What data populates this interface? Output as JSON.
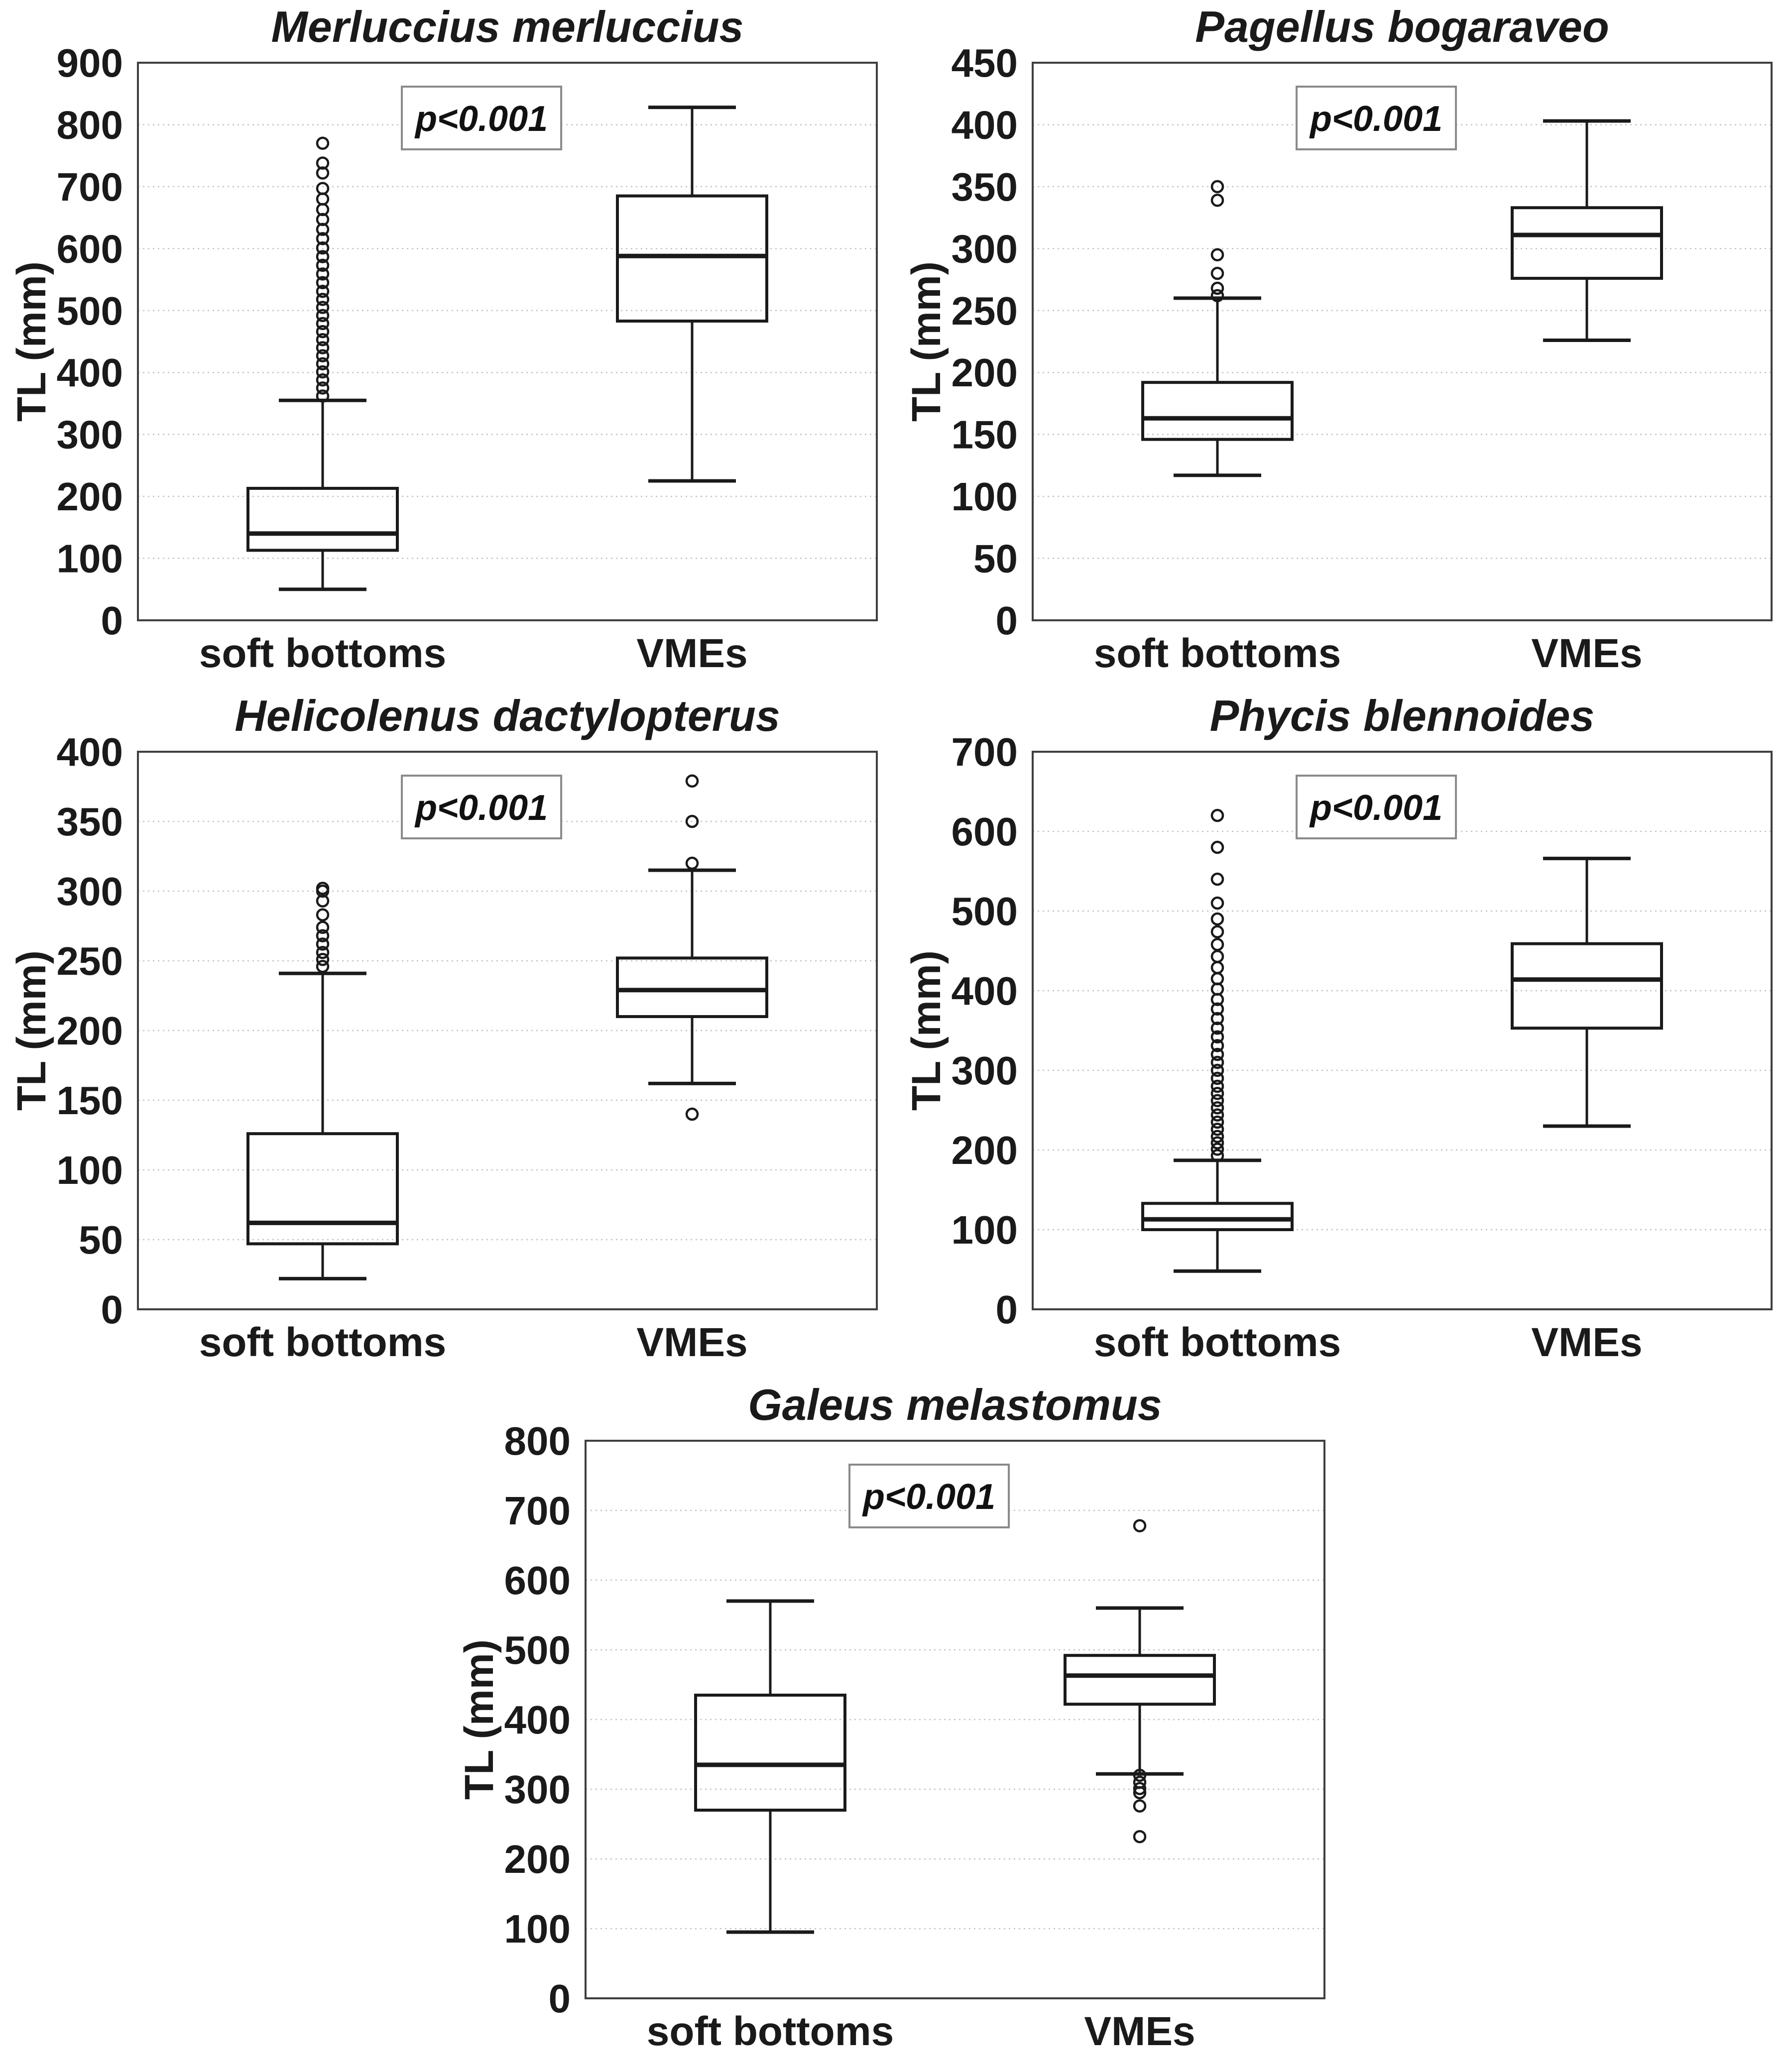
{
  "figure": {
    "ylabel": "TL (mm)",
    "p_label": "p<0.001",
    "categories": [
      "soft bottoms",
      "VMEs"
    ]
  },
  "chart_data": [
    {
      "type": "boxplot",
      "title": "Merluccius merluccius",
      "p_label": "p<0.001",
      "ylabel": "TL (mm)",
      "xlabel": "",
      "ylim": [
        0,
        900
      ],
      "ytick_step": 100,
      "grid": true,
      "categories": [
        "soft bottoms",
        "VMEs"
      ],
      "series": [
        {
          "name": "soft bottoms",
          "whisker_low": 50,
          "q1": 113,
          "median": 140,
          "q3": 213,
          "whisker_high": 355,
          "outliers": [
            362,
            375,
            388,
            401,
            414,
            427,
            440,
            453,
            466,
            479,
            492,
            505,
            518,
            531,
            545,
            559,
            573,
            587,
            601,
            616,
            631,
            647,
            663,
            680,
            697,
            722,
            738,
            770
          ]
        },
        {
          "name": "VMEs",
          "whisker_low": 225,
          "q1": 483,
          "median": 588,
          "q3": 685,
          "whisker_high": 828,
          "outliers": []
        }
      ]
    },
    {
      "type": "boxplot",
      "title": "Pagellus bogaraveo",
      "p_label": "p<0.001",
      "ylabel": "TL (mm)",
      "xlabel": "",
      "ylim": [
        0,
        450
      ],
      "ytick_step": 50,
      "grid": true,
      "categories": [
        "soft bottoms",
        "VMEs"
      ],
      "series": [
        {
          "name": "soft bottoms",
          "whisker_low": 117,
          "q1": 146,
          "median": 163,
          "q3": 192,
          "whisker_high": 260,
          "outliers": [
            262,
            268,
            280,
            295,
            339,
            350
          ]
        },
        {
          "name": "VMEs",
          "whisker_low": 226,
          "q1": 276,
          "median": 311,
          "q3": 333,
          "whisker_high": 403,
          "outliers": []
        }
      ]
    },
    {
      "type": "boxplot",
      "title": "Helicolenus dactylopterus",
      "p_label": "p<0.001",
      "ylabel": "TL (mm)",
      "xlabel": "",
      "ylim": [
        0,
        400
      ],
      "ytick_step": 50,
      "grid": true,
      "categories": [
        "soft bottoms",
        "VMEs"
      ],
      "series": [
        {
          "name": "soft bottoms",
          "whisker_low": 22,
          "q1": 47,
          "median": 62,
          "q3": 126,
          "whisker_high": 241,
          "outliers": [
            246,
            251,
            256,
            262,
            268,
            274,
            283,
            293,
            300,
            302
          ]
        },
        {
          "name": "VMEs",
          "whisker_low": 162,
          "q1": 210,
          "median": 229,
          "q3": 252,
          "whisker_high": 315,
          "outliers": [
            140,
            320,
            350,
            379
          ]
        }
      ]
    },
    {
      "type": "boxplot",
      "title": "Phycis blennoides",
      "p_label": "p<0.001",
      "ylabel": "TL (mm)",
      "xlabel": "",
      "ylim": [
        0,
        700
      ],
      "ytick_step": 100,
      "grid": true,
      "categories": [
        "soft bottoms",
        "VMEs"
      ],
      "series": [
        {
          "name": "soft bottoms",
          "whisker_low": 48,
          "q1": 100,
          "median": 113,
          "q3": 133,
          "whisker_high": 187,
          "outliers": [
            193,
            201,
            209,
            217,
            226,
            235,
            244,
            253,
            262,
            271,
            280,
            290,
            300,
            310,
            320,
            331,
            342,
            353,
            365,
            377,
            389,
            402,
            415,
            429,
            443,
            458,
            474,
            490,
            510,
            540,
            580,
            620
          ]
        },
        {
          "name": "VMEs",
          "whisker_low": 230,
          "q1": 353,
          "median": 414,
          "q3": 459,
          "whisker_high": 566,
          "outliers": []
        }
      ]
    },
    {
      "type": "boxplot",
      "title": "Galeus melastomus",
      "p_label": "p<0.001",
      "ylabel": "TL (mm)",
      "xlabel": "",
      "ylim": [
        0,
        800
      ],
      "ytick_step": 100,
      "grid": true,
      "categories": [
        "soft bottoms",
        "VMEs"
      ],
      "series": [
        {
          "name": "soft bottoms",
          "whisker_low": 95,
          "q1": 270,
          "median": 335,
          "q3": 435,
          "whisker_high": 570,
          "outliers": []
        },
        {
          "name": "VMEs",
          "whisker_low": 322,
          "q1": 422,
          "median": 463,
          "q3": 492,
          "whisker_high": 560,
          "outliers": [
            320,
            310,
            301,
            295,
            276,
            232,
            678
          ]
        }
      ]
    }
  ]
}
